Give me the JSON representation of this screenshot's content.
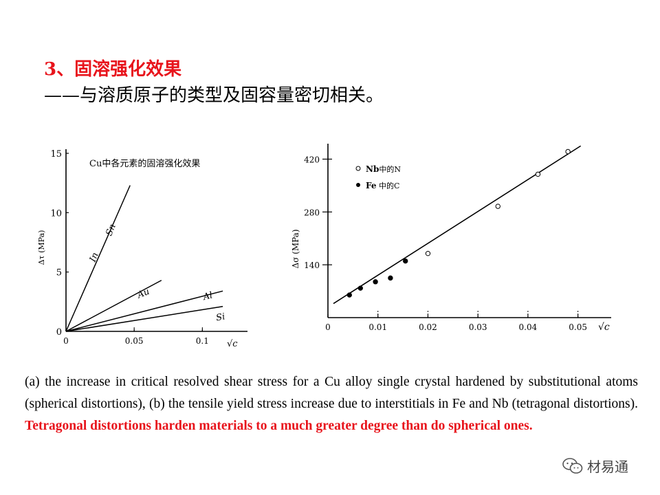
{
  "slide": {
    "title": "3、固溶强化效果",
    "subtitle": "——与溶质原子的类型及固容量密切相关。"
  },
  "figure_a": {
    "inner_title": "Cu中各元素的固溶强化效果",
    "ylabel": "Δτ (MPa)",
    "xlabel": "√c",
    "y_ticks": [
      "0",
      "5",
      "10",
      "15"
    ],
    "x_ticks": [
      "0",
      "0.05",
      "0.1"
    ],
    "line_labels": [
      "Sn",
      "In",
      "Au",
      "Al",
      "Si"
    ]
  },
  "figure_b": {
    "ylabel": "Δσ (MPa)",
    "xlabel": "√c",
    "y_ticks": [
      "140",
      "280",
      "420"
    ],
    "x_ticks": [
      "0",
      "0.01",
      "0.02",
      "0.03",
      "0.04",
      "0.05"
    ],
    "legend": [
      {
        "marker": "open-circle",
        "label_strong": "Nb",
        "label": "中的N"
      },
      {
        "marker": "filled-circle",
        "label_strong": "Fe",
        "label": " 中的C"
      }
    ]
  },
  "chart_data": [
    {
      "type": "line",
      "title": "Cu中各元素的固溶强化效果",
      "xlabel": "√c",
      "ylabel": "Δτ (MPa)",
      "xlim": [
        0,
        0.12
      ],
      "ylim": [
        0,
        15
      ],
      "series": [
        {
          "name": "Sn",
          "x": [
            0,
            0.047
          ],
          "y": [
            0,
            12.3
          ]
        },
        {
          "name": "In",
          "x": [
            0,
            0.047
          ],
          "y": [
            0,
            12.3
          ]
        },
        {
          "name": "Au",
          "x": [
            0,
            0.07
          ],
          "y": [
            0,
            4.3
          ]
        },
        {
          "name": "Al",
          "x": [
            0,
            0.115
          ],
          "y": [
            0,
            3.4
          ]
        },
        {
          "name": "Si",
          "x": [
            0,
            0.115
          ],
          "y": [
            0,
            2.1
          ]
        }
      ]
    },
    {
      "type": "scatter",
      "xlabel": "√c",
      "ylabel": "Δσ (MPa)",
      "xlim": [
        0,
        0.055
      ],
      "ylim": [
        0,
        450
      ],
      "series": [
        {
          "name": "Nb中的N",
          "marker": "open",
          "x": [
            0.02,
            0.034,
            0.042,
            0.048
          ],
          "y": [
            170,
            295,
            380,
            440
          ]
        },
        {
          "name": "Fe 中的C",
          "marker": "filled",
          "x": [
            0.0043,
            0.0065,
            0.0095,
            0.0125,
            0.0155
          ],
          "y": [
            60,
            78,
            95,
            105,
            150
          ]
        }
      ],
      "fit_line": {
        "x": [
          0,
          0.05
        ],
        "y": [
          30,
          455
        ]
      }
    }
  ],
  "caption": {
    "text": "(a) the increase in critical resolved shear stress for a Cu alloy single crystal hardened by substitutional atoms (spherical distortions), (b) the tensile yield stress increase due to interstitials in Fe and Nb (tetragonal distortions).",
    "highlight": "Tetragonal distortions harden materials to a much greater degree than do spherical ones."
  },
  "watermark": {
    "text": "材易通"
  },
  "colors": {
    "red": "#e8141c",
    "text": "#000000"
  }
}
